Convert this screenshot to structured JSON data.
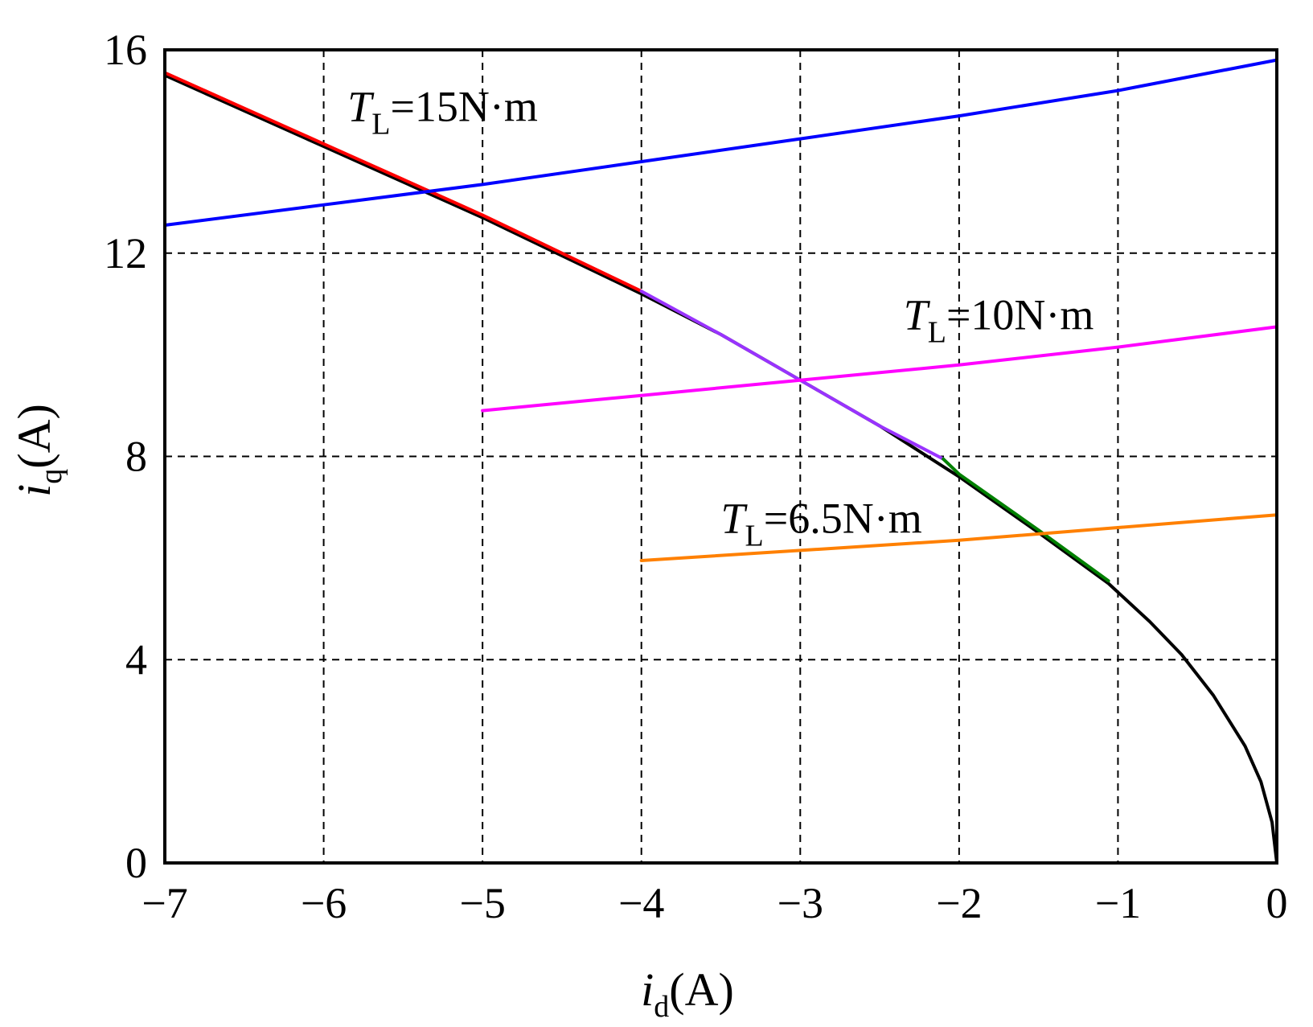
{
  "chart_data": {
    "type": "line",
    "title": "",
    "xlabel": {
      "main": "i",
      "sub": "d",
      "unit": "(A)"
    },
    "ylabel": {
      "main": "i",
      "sub": "q",
      "unit": "(A)"
    },
    "xlim": [
      -7,
      0
    ],
    "ylim": [
      0,
      16
    ],
    "x_ticks": [
      -7,
      -6,
      -5,
      -4,
      -3,
      -2,
      -1,
      0
    ],
    "x_tick_labels": [
      "−7",
      "−6",
      "−5",
      "−4",
      "−3",
      "−2",
      "−1",
      "0"
    ],
    "y_ticks": [
      0,
      4,
      8,
      12,
      16
    ],
    "y_tick_labels": [
      "0",
      "4",
      "8",
      "12",
      "16"
    ],
    "grid": true,
    "grid_style": "dashed",
    "series": [
      {
        "color": "#000000",
        "x": [
          -7.0,
          -6.5,
          -6.0,
          -5.5,
          -5.0,
          -4.5,
          -4.0,
          -3.5,
          -3.0,
          -2.5,
          -2.0,
          -1.5,
          -1.06,
          -0.8,
          -0.6,
          -0.4,
          -0.2,
          -0.1,
          -0.03,
          0.0
        ],
        "y": [
          15.5,
          14.8,
          14.1,
          13.4,
          12.7,
          11.95,
          11.2,
          10.4,
          9.5,
          8.6,
          7.6,
          6.5,
          5.5,
          4.75,
          4.1,
          3.3,
          2.3,
          1.6,
          0.8,
          0.0
        ]
      },
      {
        "color": "#ff0000",
        "x": [
          -7.0,
          -6.5,
          -6.0,
          -5.5,
          -5.0,
          -4.5,
          -4.0
        ],
        "y": [
          15.55,
          14.85,
          14.15,
          13.45,
          12.75,
          12.0,
          11.25
        ]
      },
      {
        "color": "#9933ff",
        "x": [
          -4.0,
          -3.5,
          -3.0,
          -2.5,
          -2.1
        ],
        "y": [
          11.25,
          10.4,
          9.5,
          8.6,
          7.95
        ]
      },
      {
        "color": "#008000",
        "x": [
          -2.1,
          -2.0,
          -1.5,
          -1.06
        ],
        "y": [
          7.95,
          7.65,
          6.55,
          5.55
        ]
      },
      {
        "color": "#0000ff",
        "x": [
          -7.0,
          -6.0,
          -5.0,
          -4.0,
          -3.0,
          -2.0,
          -1.0,
          0.0
        ],
        "y": [
          12.55,
          12.95,
          13.35,
          13.8,
          14.25,
          14.7,
          15.2,
          15.8
        ]
      },
      {
        "color": "#ff00ff",
        "x": [
          -5.0,
          -4.0,
          -3.0,
          -2.0,
          -1.0,
          0.0
        ],
        "y": [
          8.9,
          9.2,
          9.5,
          9.8,
          10.15,
          10.55
        ]
      },
      {
        "color": "#ff8000",
        "x": [
          -4.0,
          -3.0,
          -2.0,
          -1.0,
          0.0
        ],
        "y": [
          5.95,
          6.15,
          6.35,
          6.6,
          6.85
        ]
      }
    ],
    "annotations": [
      {
        "main": "T",
        "sub": "L",
        "rest": "=15N·m",
        "x": -5.85,
        "y": 14.6
      },
      {
        "main": "T",
        "sub": "L",
        "rest": "=10N·m",
        "x": -2.35,
        "y": 10.5
      },
      {
        "main": "T",
        "sub": "L",
        "rest": "=6.5N·m",
        "x": -3.5,
        "y": 6.5
      }
    ]
  }
}
